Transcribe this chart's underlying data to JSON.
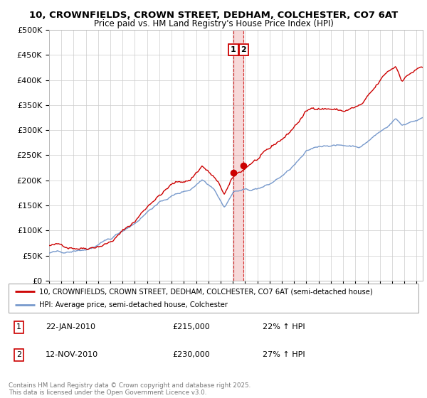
{
  "title_line1": "10, CROWNFIELDS, CROWN STREET, DEDHAM, COLCHESTER, CO7 6AT",
  "title_line2": "Price paid vs. HM Land Registry's House Price Index (HPI)",
  "ytick_labels": [
    "£0",
    "£50K",
    "£100K",
    "£150K",
    "£200K",
    "£250K",
    "£300K",
    "£350K",
    "£400K",
    "£450K",
    "£500K"
  ],
  "ytick_values": [
    0,
    50000,
    100000,
    150000,
    200000,
    250000,
    300000,
    350000,
    400000,
    450000,
    500000
  ],
  "ylim": [
    0,
    500000
  ],
  "legend_line1": "10, CROWNFIELDS, CROWN STREET, DEDHAM, COLCHESTER, CO7 6AT (semi-detached house)",
  "legend_line2": "HPI: Average price, semi-detached house, Colchester",
  "red_color": "#cc0000",
  "blue_color": "#7799cc",
  "annotation1_label": "1",
  "annotation1_date": "22-JAN-2010",
  "annotation1_price": "£215,000",
  "annotation1_hpi": "22% ↑ HPI",
  "annotation1_value": 215000,
  "annotation2_label": "2",
  "annotation2_date": "12-NOV-2010",
  "annotation2_price": "£230,000",
  "annotation2_hpi": "27% ↑ HPI",
  "annotation2_value": 230000,
  "footer": "Contains HM Land Registry data © Crown copyright and database right 2025.\nThis data is licensed under the Open Government Licence v3.0.",
  "background_color": "#ffffff",
  "grid_color": "#cccccc",
  "xmin": 1995,
  "xmax": 2025.5
}
